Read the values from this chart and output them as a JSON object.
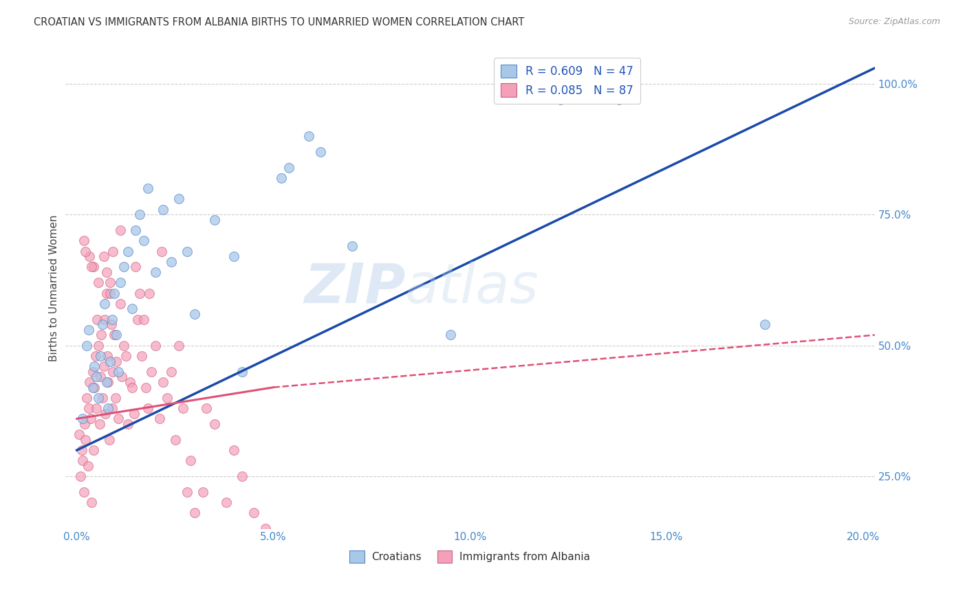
{
  "title": "CROATIAN VS IMMIGRANTS FROM ALBANIA BIRTHS TO UNMARRIED WOMEN CORRELATION CHART",
  "source": "Source: ZipAtlas.com",
  "ylabel": "Births to Unmarried Women",
  "x_tick_labels": [
    "0.0%",
    "",
    "",
    "",
    "",
    "5.0%",
    "",
    "",
    "",
    "",
    "10.0%",
    "",
    "",
    "",
    "",
    "15.0%",
    "",
    "",
    "",
    "",
    "20.0%"
  ],
  "x_tick_vals": [
    0.0,
    1.0,
    2.0,
    3.0,
    4.0,
    5.0,
    6.0,
    7.0,
    8.0,
    9.0,
    10.0,
    11.0,
    12.0,
    13.0,
    14.0,
    15.0,
    16.0,
    17.0,
    18.0,
    19.0,
    20.0
  ],
  "x_tick_major_labels": [
    "0.0%",
    "5.0%",
    "10.0%",
    "15.0%",
    "20.0%"
  ],
  "x_tick_major_vals": [
    0.0,
    5.0,
    10.0,
    15.0,
    20.0
  ],
  "y_tick_labels": [
    "25.0%",
    "50.0%",
    "75.0%",
    "100.0%"
  ],
  "y_tick_vals": [
    25.0,
    50.0,
    75.0,
    100.0
  ],
  "xlim": [
    -0.3,
    20.3
  ],
  "ylim": [
    15.0,
    107.0
  ],
  "watermark_zip": "ZIP",
  "watermark_atlas": "atlas",
  "croatians_color": "#a8c8e8",
  "albanians_color": "#f4a0b8",
  "blue_line_color": "#1a4aaa",
  "pink_line_color": "#e05075",
  "blue_edge_color": "#5588cc",
  "pink_edge_color": "#cc6080",
  "croatians_x": [
    0.15,
    0.25,
    0.3,
    0.4,
    0.45,
    0.5,
    0.55,
    0.6,
    0.65,
    0.7,
    0.75,
    0.8,
    0.85,
    0.9,
    0.95,
    1.0,
    1.05,
    1.1,
    1.2,
    1.3,
    1.4,
    1.5,
    1.6,
    1.7,
    1.8,
    2.0,
    2.2,
    2.4,
    2.6,
    2.8,
    3.0,
    3.5,
    4.0,
    4.2,
    5.2,
    5.4,
    5.9,
    6.2,
    7.0,
    9.5,
    11.0,
    12.3,
    12.5,
    13.2,
    13.4,
    13.8,
    17.5
  ],
  "croatians_y": [
    36,
    50,
    53,
    42,
    46,
    44,
    40,
    48,
    54,
    58,
    43,
    38,
    47,
    55,
    60,
    52,
    45,
    62,
    65,
    68,
    57,
    72,
    75,
    70,
    80,
    64,
    76,
    66,
    78,
    68,
    56,
    74,
    67,
    45,
    82,
    84,
    90,
    87,
    69,
    52,
    99,
    97,
    99,
    99,
    98,
    97,
    54
  ],
  "albanians_x": [
    0.05,
    0.1,
    0.12,
    0.15,
    0.18,
    0.2,
    0.22,
    0.25,
    0.28,
    0.3,
    0.32,
    0.35,
    0.38,
    0.4,
    0.42,
    0.45,
    0.48,
    0.5,
    0.52,
    0.55,
    0.58,
    0.6,
    0.62,
    0.65,
    0.68,
    0.7,
    0.72,
    0.75,
    0.78,
    0.8,
    0.82,
    0.85,
    0.88,
    0.9,
    0.92,
    0.95,
    0.98,
    1.0,
    1.05,
    1.1,
    1.15,
    1.2,
    1.25,
    1.3,
    1.35,
    1.4,
    1.45,
    1.5,
    1.55,
    1.6,
    1.65,
    1.7,
    1.75,
    1.8,
    1.9,
    2.0,
    2.1,
    2.2,
    2.3,
    2.4,
    2.5,
    2.6,
    2.7,
    2.8,
    2.9,
    3.0,
    3.2,
    3.5,
    3.8,
    4.0,
    4.2,
    4.5,
    4.8,
    3.3,
    2.15,
    1.85,
    0.85,
    0.55,
    0.42,
    0.32,
    0.22,
    0.18,
    0.38,
    0.68,
    0.92,
    0.75,
    1.1
  ],
  "albanians_y": [
    33,
    25,
    30,
    28,
    22,
    35,
    32,
    40,
    27,
    38,
    43,
    36,
    20,
    45,
    30,
    42,
    48,
    38,
    55,
    50,
    35,
    44,
    52,
    40,
    46,
    55,
    37,
    60,
    48,
    43,
    32,
    62,
    54,
    38,
    45,
    52,
    40,
    47,
    36,
    58,
    44,
    50,
    48,
    35,
    43,
    42,
    37,
    65,
    55,
    60,
    48,
    55,
    42,
    38,
    45,
    50,
    36,
    43,
    40,
    45,
    32,
    50,
    38,
    22,
    28,
    18,
    22,
    35,
    20,
    30,
    25,
    18,
    15,
    38,
    68,
    60,
    60,
    62,
    65,
    67,
    68,
    70,
    65,
    67,
    68,
    64,
    72
  ],
  "blue_trend": [
    0.0,
    20.3,
    30.0,
    103.0
  ],
  "pink_trend_solid": [
    0.0,
    5.0,
    36.0,
    42.0
  ],
  "pink_trend_dash": [
    5.0,
    20.3,
    42.0,
    52.0
  ],
  "legend_entries": [
    {
      "label": "R = 0.609   N = 47",
      "color": "#a8c8e8"
    },
    {
      "label": "R = 0.085   N = 87",
      "color": "#f4a0b8"
    }
  ],
  "bottom_legend_items": [
    "Croatians",
    "Immigrants from Albania"
  ]
}
